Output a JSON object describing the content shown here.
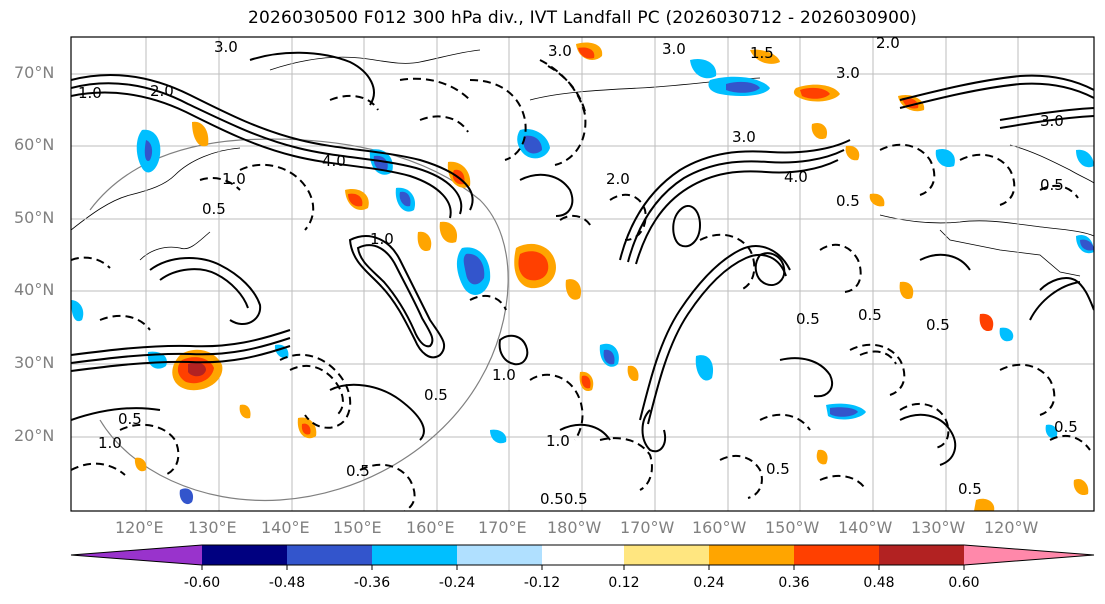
{
  "title": "2026030500 F012 300 hPa div., IVT Landfall PC (2026030712 - 2026030900)",
  "lat_labels": [
    "70°N",
    "60°N",
    "50°N",
    "40°N",
    "30°N",
    "20°N"
  ],
  "lon_labels": [
    "120°E",
    "130°E",
    "140°E",
    "150°E",
    "160°E",
    "170°E",
    "180°W",
    "170°W",
    "160°W",
    "150°W",
    "140°W",
    "130°W",
    "120°W"
  ],
  "contour_labels": [
    "3.0",
    "3.0",
    "3.0",
    "1.5",
    "2.0",
    "3.0",
    "1.0",
    "2.0",
    "4.0",
    "1.0",
    "0.5",
    "3.0",
    "2.0",
    "4.0",
    "3.0",
    "0.5",
    "1.0",
    "0.5",
    "0.5",
    "1.0",
    "0.5",
    "0.5",
    "0.5",
    "0.5",
    "1.0",
    "0.5",
    "0.50.5",
    "0.5",
    "0.5",
    "1.0",
    "0.5"
  ],
  "colorbar": {
    "colors": [
      "#9933cc",
      "#000080",
      "#3355cc",
      "#00bfff",
      "#b0e0ff",
      "#ffffff",
      "#ffe680",
      "#ffa500",
      "#ff4000",
      "#b22222",
      "#ff88aa"
    ],
    "tick_labels": [
      "-0.60",
      "-0.48",
      "-0.36",
      "-0.24",
      "-0.12",
      "0.12",
      "0.24",
      "0.36",
      "0.48",
      "0.60"
    ]
  }
}
